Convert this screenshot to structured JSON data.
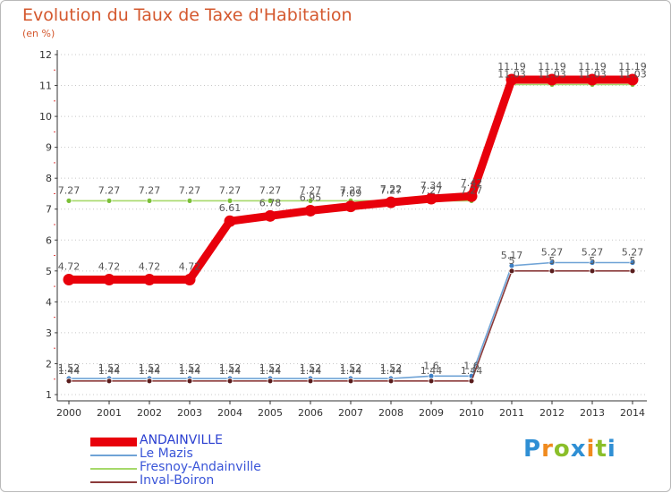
{
  "title": "Evolution du Taux de Taxe d'Habitation",
  "subtitle": "(en %)",
  "logo": {
    "text": "Proxiti",
    "letters": [
      "P",
      "r",
      "o",
      "x",
      "i",
      "t",
      "i"
    ],
    "colors": [
      "#2f8fd4",
      "#f08a1e",
      "#8bbf2a",
      "#2f8fd4",
      "#f08a1e",
      "#8bbf2a",
      "#2f8fd4"
    ]
  },
  "chart_data": {
    "type": "line",
    "title": "Evolution du Taux de Taxe d'Habitation",
    "ylabel": "(en %)",
    "xlabel": "",
    "x": [
      "2000",
      "2001",
      "2002",
      "2003",
      "2004",
      "2005",
      "2006",
      "2007",
      "2008",
      "2009",
      "2010",
      "2011",
      "2012",
      "2013",
      "2014"
    ],
    "ylim": [
      1,
      12
    ],
    "yticks": [
      "1",
      "2",
      "3",
      "4",
      "5",
      "6",
      "7",
      "8",
      "9",
      "10",
      "11",
      "12"
    ],
    "grid": "horizontal dotted",
    "legend_position": "bottom-left",
    "series": [
      {
        "name": "ANDAINVILLE",
        "color": "#e8000b",
        "values": [
          4.72,
          4.72,
          4.72,
          4.72,
          6.61,
          6.78,
          6.95,
          7.09,
          7.22,
          7.34,
          7.42,
          11.19,
          11.19,
          11.19,
          11.19
        ],
        "labels": [
          "4.72",
          "4.72",
          "4.72",
          "4.72",
          "6.61",
          "6.78",
          "6.95",
          "7.09",
          "7.22",
          "7.34",
          "7.42",
          "11.19",
          "11.19",
          "11.19",
          "11.19"
        ]
      },
      {
        "name": "Le Mazis",
        "color": "#6fa3d6",
        "marker": "#3d7fc4",
        "values": [
          1.52,
          1.52,
          1.52,
          1.52,
          1.52,
          1.52,
          1.52,
          1.52,
          1.52,
          1.6,
          1.6,
          5.17,
          5.27,
          5.27,
          5.27
        ],
        "labels": [
          "1.52",
          "1.52",
          "1.52",
          "1.52",
          "1.52",
          "1.52",
          "1.52",
          "1.52",
          "1.52",
          "1.6",
          "1.6",
          "5.17",
          "5.27",
          "5.27",
          "5.27"
        ]
      },
      {
        "name": "Fresnoy-Andainville",
        "color": "#a6d96a",
        "marker": "#7cc038",
        "values": [
          7.27,
          7.27,
          7.27,
          7.27,
          7.27,
          7.27,
          7.27,
          7.27,
          7.27,
          7.27,
          7.27,
          11.03,
          11.03,
          11.03,
          11.03
        ],
        "labels": [
          "7.27",
          "7.27",
          "7.27",
          "7.27",
          "7.27",
          "7.27",
          "7.27",
          "7.27",
          "7.27",
          "7.27",
          "7.27",
          "11.03",
          "11.03",
          "11.03",
          "11.03"
        ]
      },
      {
        "name": "Inval-Boiron",
        "color": "#8b3a3a",
        "marker": "#5a1e1e",
        "values": [
          1.44,
          1.44,
          1.44,
          1.44,
          1.44,
          1.44,
          1.44,
          1.44,
          1.44,
          1.44,
          1.44,
          5.0,
          5.0,
          5.0,
          5.0
        ],
        "labels": [
          "1.44",
          "1.44",
          "1.44",
          "1.44",
          "1.44",
          "1.44",
          "1.44",
          "1.44",
          "1.44",
          "1.44",
          "1.44",
          "5",
          "5",
          "5",
          "5"
        ]
      }
    ]
  }
}
